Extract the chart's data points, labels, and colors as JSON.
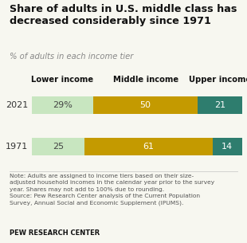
{
  "title": "Share of adults in U.S. middle class has\ndecreased considerably since 1971",
  "subtitle": "% of adults in each income tier",
  "years": [
    "2021",
    "1971"
  ],
  "lower_income": [
    29,
    25
  ],
  "middle_income": [
    50,
    61
  ],
  "upper_income": [
    21,
    14
  ],
  "lower_labels": [
    "29%",
    "25"
  ],
  "middle_labels": [
    "50",
    "61"
  ],
  "upper_labels": [
    "21",
    "14"
  ],
  "color_lower": "#c8e6c0",
  "color_middle": "#c49a00",
  "color_upper": "#2e7d6e",
  "note": "Note: Adults are assigned to income tiers based on their size-\nadjusted household incomes in the calendar year prior to the survey\nyear. Shares may not add to 100% due to rounding.\nSource: Pew Research Center analysis of the Current Population\nSurvey, Annual Social and Economic Supplement (IPUMS).",
  "source_label": "PEW RESEARCH CENTER",
  "col_headers": [
    "Lower income",
    "Middle income",
    "Upper income"
  ],
  "bg_color": "#f7f7f0",
  "text_color": "#333333",
  "note_color": "#555555"
}
